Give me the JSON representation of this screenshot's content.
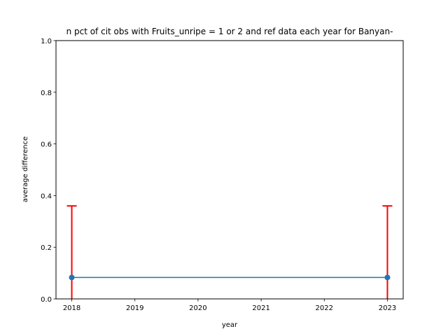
{
  "chart_data": {
    "type": "line",
    "title": "n pct of cit obs with Fruits_unripe = 1 or 2 and ref data each year for Banyan-",
    "xlabel": "year",
    "ylabel": "average difference",
    "x": [
      2018,
      2023
    ],
    "series": [
      {
        "values": [
          0.083,
          0.083
        ],
        "error_upper": [
          0.36,
          0.36
        ],
        "error_lower": [
          0.0,
          0.0
        ],
        "color": "#1f77b4",
        "error_color": "#ff0000"
      }
    ],
    "xlim": [
      2017.75,
      2023.25
    ],
    "ylim": [
      0,
      1.0
    ],
    "xticks": [
      "2018",
      "2019",
      "2020",
      "2021",
      "2022",
      "2023"
    ],
    "yticks": [
      "0.0",
      "0.2",
      "0.4",
      "0.6",
      "0.8",
      "1.0"
    ],
    "grid": false,
    "legend": "none"
  }
}
